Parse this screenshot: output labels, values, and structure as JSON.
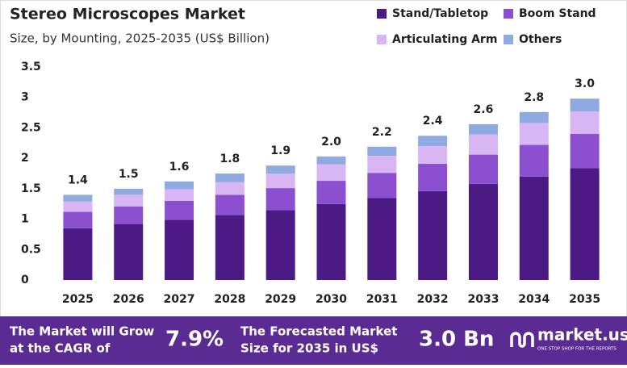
{
  "chart_data": {
    "type": "stacked_bar",
    "title": "Stereo Microscopes Market",
    "subtitle": "Size, by Mounting, 2025-2035 (US$ Billion)",
    "categories": [
      "2025",
      "2026",
      "2027",
      "2028",
      "2029",
      "2030",
      "2031",
      "2032",
      "2033",
      "2034",
      "2035"
    ],
    "series": [
      {
        "name": "Stand/Tabletop",
        "color": "#4c1a85",
        "values": [
          0.85,
          0.92,
          0.99,
          1.07,
          1.15,
          1.25,
          1.35,
          1.46,
          1.58,
          1.7,
          1.84
        ]
      },
      {
        "name": "Boom Stand",
        "color": "#8b4fd0",
        "values": [
          0.27,
          0.29,
          0.31,
          0.33,
          0.36,
          0.38,
          0.41,
          0.45,
          0.48,
          0.52,
          0.56
        ]
      },
      {
        "name": "Articulating Arm",
        "color": "#d7b6f3",
        "values": [
          0.17,
          0.19,
          0.19,
          0.21,
          0.24,
          0.27,
          0.28,
          0.29,
          0.33,
          0.36,
          0.37
        ]
      },
      {
        "name": "Others",
        "color": "#8fa9e1",
        "values": [
          0.11,
          0.1,
          0.13,
          0.14,
          0.13,
          0.13,
          0.15,
          0.17,
          0.17,
          0.18,
          0.21
        ]
      }
    ],
    "total_labels": [
      "1.4",
      "1.5",
      "1.6",
      "1.8",
      "1.9",
      "2.0",
      "2.2",
      "2.4",
      "2.6",
      "2.8",
      "3.0"
    ],
    "ylim": [
      0,
      3.5
    ],
    "yticks": [
      0,
      0.5,
      1,
      1.5,
      2,
      2.5,
      3,
      3.5
    ],
    "grid": false,
    "legend": "top-right"
  },
  "footer": {
    "cagr_text": [
      "The Market will Grow",
      "at the CAGR of"
    ],
    "cagr_value": "7.9%",
    "forecast_text": [
      "The Forecasted Market",
      "Size for 2035 in US$"
    ],
    "forecast_value": "3.0 Bn",
    "brand": "market.us",
    "tagline": "ONE STOP SHOP FOR THE REPORTS"
  }
}
